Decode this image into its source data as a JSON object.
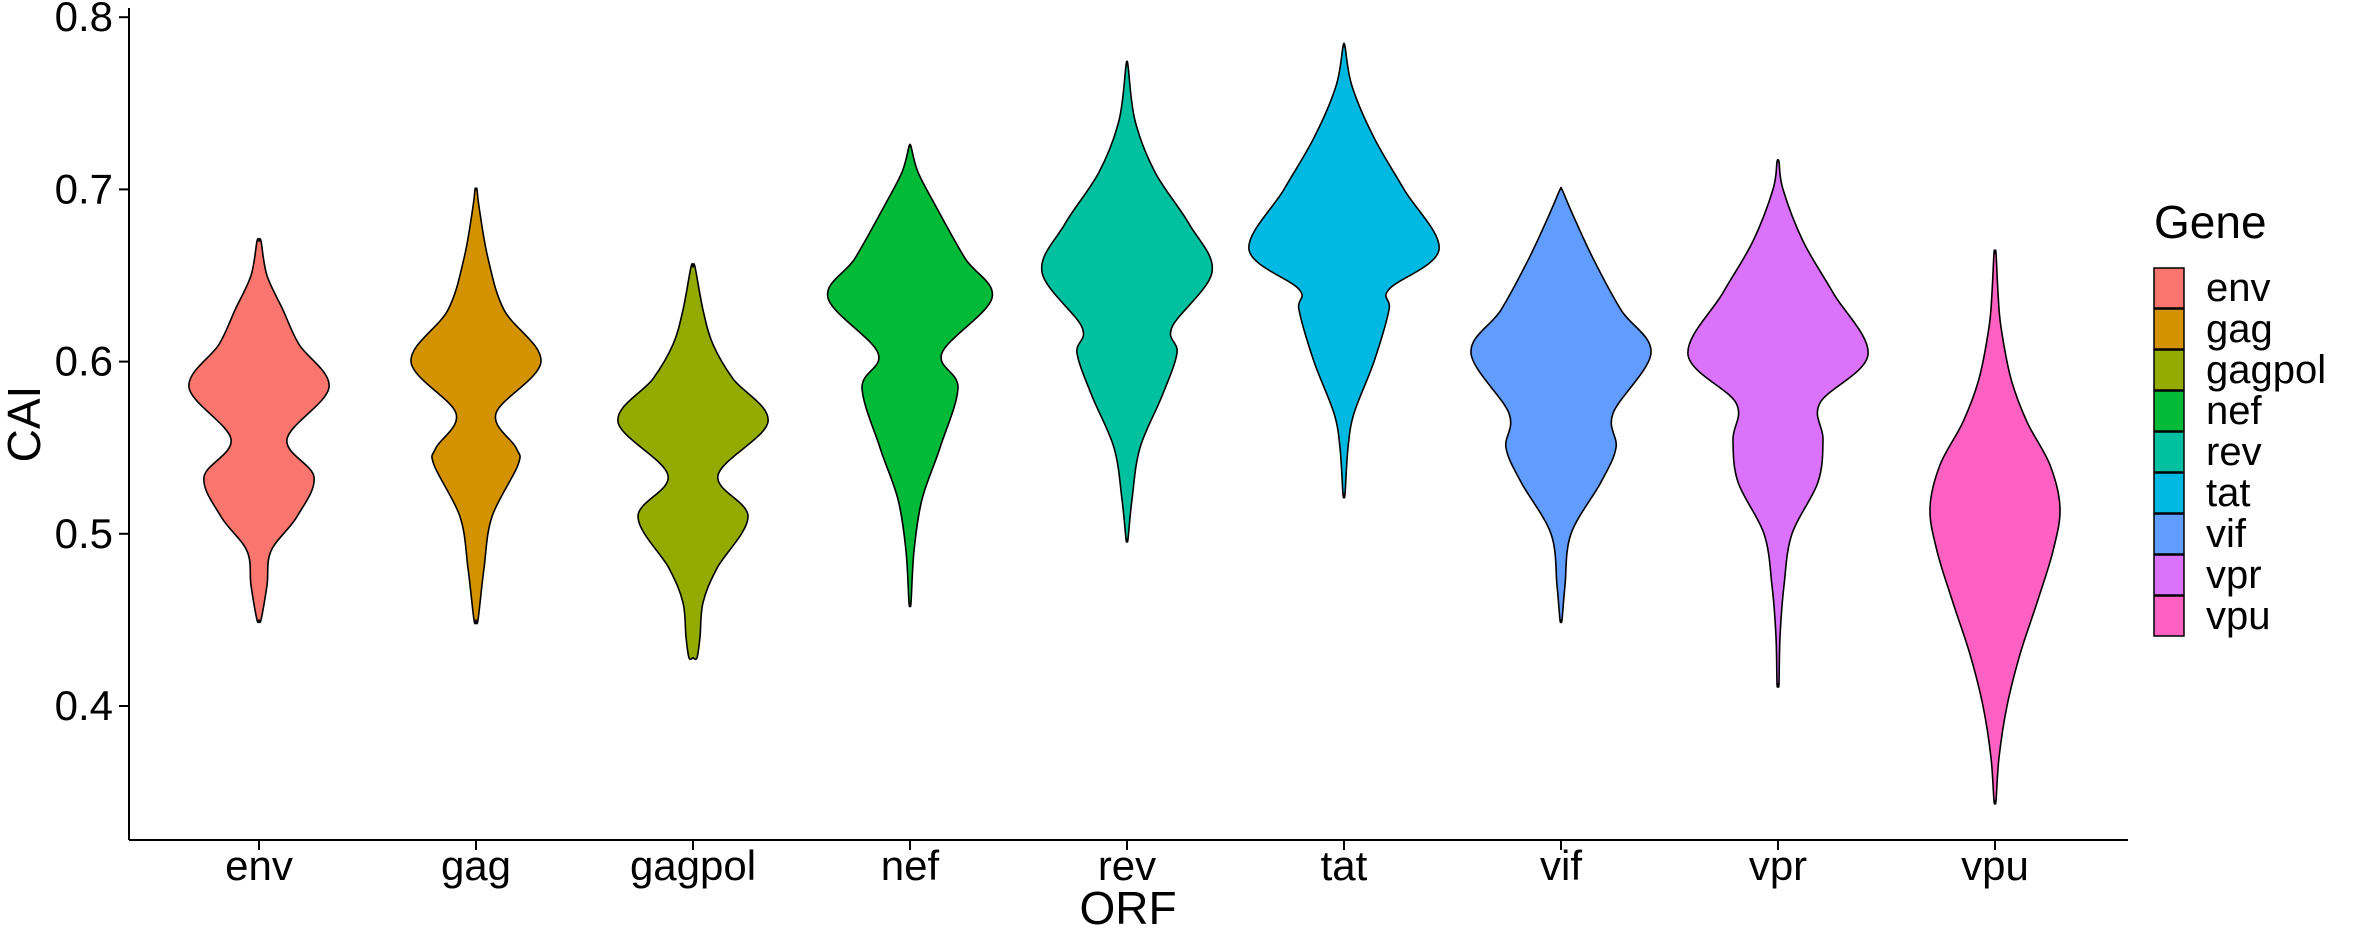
{
  "chart_data": {
    "type": "violin",
    "xlabel": "ORF",
    "ylabel": "CAI",
    "ylim": [
      0.33,
      0.8
    ],
    "yticks": [
      0.4,
      0.5,
      0.6,
      0.7,
      0.8
    ],
    "ytick_labels": [
      "0.4",
      "0.5",
      "0.6",
      "0.7",
      "0.8"
    ],
    "categories": [
      "env",
      "gag",
      "gagpol",
      "nef",
      "rev",
      "tat",
      "vif",
      "vpr",
      "vpu"
    ],
    "legend": {
      "title": "Gene",
      "position": "right"
    },
    "grid": false,
    "series": [
      {
        "name": "env",
        "color": "#F8766D",
        "profile": [
          [
            0.45,
            0.02
          ],
          [
            0.47,
            0.08
          ],
          [
            0.49,
            0.12
          ],
          [
            0.51,
            0.38
          ],
          [
            0.533,
            0.55
          ],
          [
            0.555,
            0.28
          ],
          [
            0.585,
            0.7
          ],
          [
            0.61,
            0.4
          ],
          [
            0.63,
            0.24
          ],
          [
            0.65,
            0.08
          ],
          [
            0.67,
            0.02
          ]
        ]
      },
      {
        "name": "gag",
        "color": "#D39200",
        "profile": [
          [
            0.45,
            0.02
          ],
          [
            0.48,
            0.08
          ],
          [
            0.51,
            0.16
          ],
          [
            0.54,
            0.42
          ],
          [
            0.55,
            0.4
          ],
          [
            0.57,
            0.2
          ],
          [
            0.6,
            0.65
          ],
          [
            0.63,
            0.28
          ],
          [
            0.66,
            0.12
          ],
          [
            0.69,
            0.03
          ],
          [
            0.7,
            0.01
          ]
        ]
      },
      {
        "name": "gagpol",
        "color": "#93AA00",
        "profile": [
          [
            0.428,
            0.04
          ],
          [
            0.44,
            0.07
          ],
          [
            0.46,
            0.1
          ],
          [
            0.48,
            0.24
          ],
          [
            0.51,
            0.55
          ],
          [
            0.534,
            0.25
          ],
          [
            0.565,
            0.75
          ],
          [
            0.59,
            0.4
          ],
          [
            0.61,
            0.2
          ],
          [
            0.63,
            0.1
          ],
          [
            0.655,
            0.02
          ]
        ]
      },
      {
        "name": "nef",
        "color": "#00BA38",
        "profile": [
          [
            0.46,
            0.01
          ],
          [
            0.49,
            0.04
          ],
          [
            0.52,
            0.12
          ],
          [
            0.55,
            0.3
          ],
          [
            0.585,
            0.48
          ],
          [
            0.605,
            0.32
          ],
          [
            0.637,
            0.82
          ],
          [
            0.66,
            0.55
          ],
          [
            0.69,
            0.26
          ],
          [
            0.71,
            0.08
          ],
          [
            0.725,
            0.01
          ]
        ]
      },
      {
        "name": "rev",
        "color": "#00C19F",
        "profile": [
          [
            0.497,
            0.01
          ],
          [
            0.52,
            0.05
          ],
          [
            0.55,
            0.13
          ],
          [
            0.58,
            0.35
          ],
          [
            0.605,
            0.5
          ],
          [
            0.62,
            0.45
          ],
          [
            0.652,
            0.85
          ],
          [
            0.68,
            0.62
          ],
          [
            0.71,
            0.28
          ],
          [
            0.74,
            0.08
          ],
          [
            0.772,
            0.01
          ]
        ]
      },
      {
        "name": "tat",
        "color": "#00B9E3",
        "profile": [
          [
            0.523,
            0.01
          ],
          [
            0.55,
            0.04
          ],
          [
            0.57,
            0.1
          ],
          [
            0.6,
            0.3
          ],
          [
            0.63,
            0.45
          ],
          [
            0.642,
            0.45
          ],
          [
            0.665,
            0.95
          ],
          [
            0.7,
            0.6
          ],
          [
            0.73,
            0.3
          ],
          [
            0.76,
            0.08
          ],
          [
            0.783,
            0.01
          ]
        ]
      },
      {
        "name": "vif",
        "color": "#619CFF",
        "profile": [
          [
            0.45,
            0.01
          ],
          [
            0.47,
            0.04
          ],
          [
            0.5,
            0.1
          ],
          [
            0.53,
            0.4
          ],
          [
            0.55,
            0.55
          ],
          [
            0.57,
            0.52
          ],
          [
            0.605,
            0.9
          ],
          [
            0.63,
            0.6
          ],
          [
            0.66,
            0.32
          ],
          [
            0.685,
            0.12
          ],
          [
            0.7,
            0.01
          ]
        ]
      },
      {
        "name": "vpr",
        "color": "#DB72FB",
        "profile": [
          [
            0.413,
            0.01
          ],
          [
            0.44,
            0.02
          ],
          [
            0.47,
            0.06
          ],
          [
            0.5,
            0.14
          ],
          [
            0.53,
            0.4
          ],
          [
            0.555,
            0.45
          ],
          [
            0.576,
            0.42
          ],
          [
            0.604,
            0.9
          ],
          [
            0.64,
            0.55
          ],
          [
            0.67,
            0.25
          ],
          [
            0.7,
            0.05
          ],
          [
            0.716,
            0.01
          ]
        ]
      },
      {
        "name": "vpu",
        "color": "#FF61C3",
        "profile": [
          [
            0.345,
            0.01
          ],
          [
            0.37,
            0.04
          ],
          [
            0.4,
            0.12
          ],
          [
            0.43,
            0.25
          ],
          [
            0.46,
            0.42
          ],
          [
            0.49,
            0.58
          ],
          [
            0.515,
            0.65
          ],
          [
            0.54,
            0.55
          ],
          [
            0.565,
            0.32
          ],
          [
            0.59,
            0.16
          ],
          [
            0.62,
            0.06
          ],
          [
            0.64,
            0.03
          ],
          [
            0.663,
            0.01
          ]
        ]
      }
    ]
  }
}
